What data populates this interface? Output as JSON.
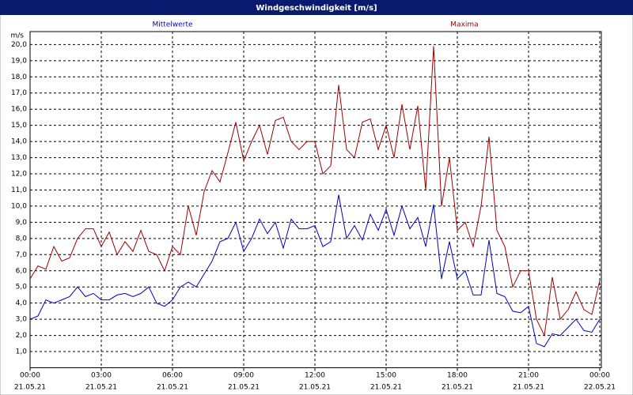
{
  "chart_data": {
    "type": "line",
    "title": "Windgeschwindigkeit [m/s]",
    "y_label": "m/s",
    "x": [
      0,
      20,
      40,
      60,
      80,
      100,
      120,
      140,
      160,
      180,
      200,
      220,
      240,
      260,
      280,
      300,
      320,
      340,
      360,
      380,
      400,
      420,
      440,
      460,
      480,
      500,
      520,
      540,
      560,
      580,
      600,
      620,
      640,
      660,
      680,
      700,
      720,
      740,
      760,
      780,
      800,
      820,
      840,
      860,
      880,
      900,
      920,
      940,
      960,
      980,
      1000,
      1020,
      1040,
      1060,
      1080,
      1100,
      1120,
      1140,
      1160,
      1180,
      1200,
      1220,
      1240,
      1260,
      1280,
      1300,
      1320,
      1340,
      1360,
      1380,
      1400,
      1420,
      1440
    ],
    "series": [
      {
        "name": "Mittelwerte",
        "color": "#0000c0",
        "values": [
          3.0,
          3.2,
          4.2,
          4.0,
          4.2,
          4.4,
          5.0,
          4.4,
          4.6,
          4.2,
          4.2,
          4.5,
          4.6,
          4.4,
          4.6,
          5.0,
          4.0,
          3.8,
          4.2,
          5.0,
          5.3,
          5.0,
          5.8,
          6.6,
          7.8,
          8.0,
          9.0,
          7.2,
          8.0,
          9.2,
          8.3,
          9.0,
          7.4,
          9.2,
          8.6,
          8.6,
          8.8,
          7.5,
          7.8,
          10.7,
          8.0,
          8.8,
          7.9,
          9.5,
          8.5,
          9.8,
          8.2,
          10.0,
          8.6,
          9.3,
          7.5,
          10.1,
          5.5,
          7.8,
          5.5,
          6.0,
          4.5,
          4.5,
          7.9,
          4.6,
          4.4,
          3.5,
          3.4,
          3.8,
          1.5,
          1.3,
          2.1,
          2.0,
          2.5,
          3.0,
          2.3,
          2.2,
          3.0
        ]
      },
      {
        "name": "Maxima",
        "color": "#a00000",
        "values": [
          5.5,
          6.3,
          6.1,
          7.5,
          6.6,
          6.8,
          8.0,
          8.6,
          8.6,
          7.5,
          8.4,
          7.0,
          7.8,
          7.2,
          8.5,
          7.2,
          7.0,
          6.0,
          7.5,
          7.0,
          10.0,
          8.2,
          10.9,
          12.2,
          11.5,
          13.3,
          15.2,
          12.8,
          14.0,
          15.0,
          13.2,
          15.3,
          15.5,
          14.0,
          13.5,
          14.0,
          14.0,
          12.0,
          12.5,
          17.5,
          13.5,
          13.0,
          15.2,
          15.4,
          13.5,
          15.0,
          13.0,
          16.3,
          13.5,
          16.2,
          11.0,
          19.9,
          10.0,
          13.0,
          8.5,
          9.0,
          7.5,
          10.0,
          14.3,
          8.5,
          7.5,
          5.0,
          6.0,
          6.0,
          3.0,
          2.0,
          5.6,
          3.0,
          3.6,
          4.7,
          3.6,
          3.3,
          5.4
        ]
      }
    ],
    "xlim": [
      0,
      1440
    ],
    "xticks": [
      {
        "value": 0,
        "label": "00:00"
      },
      {
        "value": 180,
        "label": "03:00"
      },
      {
        "value": 360,
        "label": "06:00"
      },
      {
        "value": 540,
        "label": "09:00"
      },
      {
        "value": 720,
        "label": "12:00"
      },
      {
        "value": 900,
        "label": "15:00"
      },
      {
        "value": 1080,
        "label": "18:00"
      },
      {
        "value": 1260,
        "label": "21:00"
      },
      {
        "value": 1440,
        "label": "00:00"
      }
    ],
    "xtick_dates": [
      "21.05.21",
      "21.05.21",
      "21.05.21",
      "21.05.21",
      "21.05.21",
      "21.05.21",
      "21.05.21",
      "21.05.21",
      "22.05.21"
    ],
    "ylim": [
      0,
      20.8
    ],
    "yticks": [
      {
        "value": 1,
        "label": "1,0"
      },
      {
        "value": 2,
        "label": "2,0"
      },
      {
        "value": 3,
        "label": "3,0"
      },
      {
        "value": 4,
        "label": "4,0"
      },
      {
        "value": 5,
        "label": "5,0"
      },
      {
        "value": 6,
        "label": "6,0"
      },
      {
        "value": 7,
        "label": "7,0"
      },
      {
        "value": 8,
        "label": "8,0"
      },
      {
        "value": 9,
        "label": "9,0"
      },
      {
        "value": 10,
        "label": "10,0"
      },
      {
        "value": 11,
        "label": "11,0"
      },
      {
        "value": 12,
        "label": "12,0"
      },
      {
        "value": 13,
        "label": "13,0"
      },
      {
        "value": 14,
        "label": "14,0"
      },
      {
        "value": 15,
        "label": "15,0"
      },
      {
        "value": 16,
        "label": "16,0"
      },
      {
        "value": 17,
        "label": "17,0"
      },
      {
        "value": 18,
        "label": "18,0"
      },
      {
        "value": 19,
        "label": "19,0"
      },
      {
        "value": 20,
        "label": "20,0"
      }
    ],
    "grid": true
  }
}
